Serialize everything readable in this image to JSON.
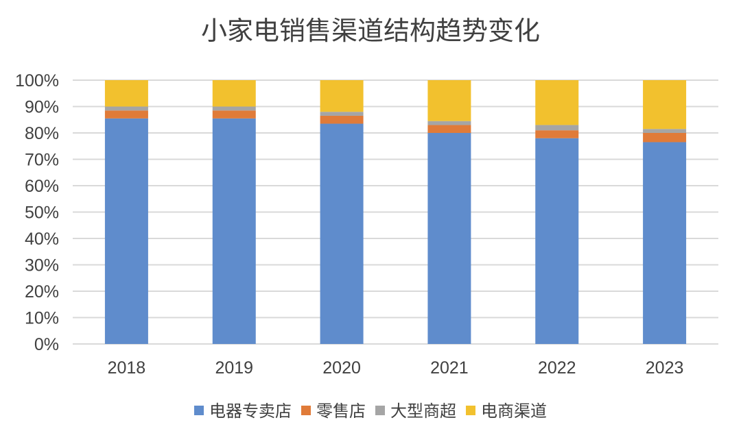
{
  "chart_data": {
    "type": "bar",
    "stacked": true,
    "title": "小家电销售渠道结构趋势变化",
    "xlabel": "",
    "ylabel": "",
    "categories": [
      "2018",
      "2019",
      "2020",
      "2021",
      "2022",
      "2023"
    ],
    "y_ticks": [
      "0%",
      "10%",
      "20%",
      "30%",
      "40%",
      "50%",
      "60%",
      "70%",
      "80%",
      "90%",
      "100%"
    ],
    "ylim": [
      0,
      100
    ],
    "grid": true,
    "legend_position": "bottom",
    "series": [
      {
        "name": "电器专卖店",
        "color": "#5F8CCC",
        "values": [
          85.5,
          85.5,
          83.5,
          80,
          78,
          76.5
        ]
      },
      {
        "name": "零售店",
        "color": "#E07B39",
        "values": [
          3,
          3,
          3,
          3,
          3,
          3.5
        ]
      },
      {
        "name": "大型商超",
        "color": "#A5A5A5",
        "values": [
          1.5,
          1.5,
          1.5,
          1.5,
          2,
          1.5
        ]
      },
      {
        "name": "电商渠道",
        "color": "#F2C12E",
        "values": [
          10,
          10,
          12,
          15.5,
          17,
          18.5
        ]
      }
    ],
    "gridline_color": "#D9D9D9"
  }
}
